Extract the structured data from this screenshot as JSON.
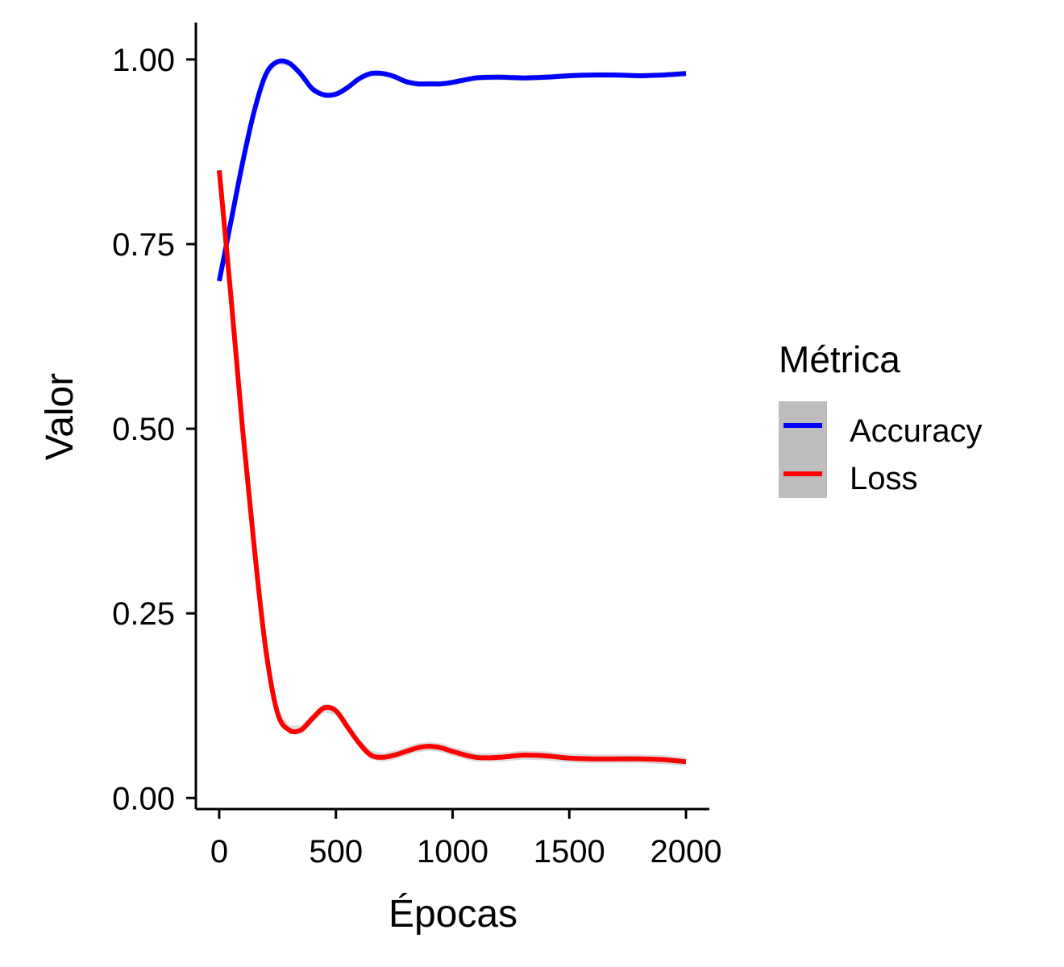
{
  "chart_data": {
    "type": "line",
    "title": "",
    "xlabel": "Épocas",
    "ylabel": "Valor",
    "xlim": [
      -100,
      2100
    ],
    "ylim": [
      -0.015,
      1.05
    ],
    "x_ticks": [
      0,
      500,
      1000,
      1500,
      2000
    ],
    "x_tick_labels": [
      "0",
      "500",
      "1000",
      "1500",
      "2000"
    ],
    "y_ticks": [
      0,
      0.25,
      0.5,
      0.75,
      1.0
    ],
    "y_tick_labels": [
      "0.00",
      "0.25",
      "0.50",
      "0.75",
      "1.00"
    ],
    "grid": false,
    "legend": {
      "title": "Métrica",
      "position": "right"
    },
    "series": [
      {
        "name": "Accuracy",
        "color": "#0000ff",
        "band": 0.004,
        "x": [
          0,
          50,
          100,
          150,
          200,
          250,
          300,
          350,
          400,
          450,
          500,
          550,
          600,
          650,
          700,
          750,
          800,
          850,
          900,
          950,
          1000,
          1100,
          1200,
          1300,
          1400,
          1500,
          1600,
          1700,
          1800,
          1900,
          2000
        ],
        "y": [
          0.7,
          0.78,
          0.86,
          0.93,
          0.98,
          0.997,
          0.995,
          0.98,
          0.96,
          0.952,
          0.953,
          0.962,
          0.974,
          0.981,
          0.981,
          0.977,
          0.97,
          0.967,
          0.967,
          0.967,
          0.969,
          0.975,
          0.976,
          0.975,
          0.976,
          0.978,
          0.979,
          0.979,
          0.978,
          0.979,
          0.981
        ]
      },
      {
        "name": "Loss",
        "color": "#ff0000",
        "band": 0.006,
        "x": [
          0,
          50,
          100,
          150,
          200,
          250,
          300,
          350,
          400,
          450,
          500,
          550,
          600,
          650,
          700,
          750,
          800,
          850,
          900,
          950,
          1000,
          1100,
          1200,
          1300,
          1400,
          1500,
          1600,
          1700,
          1800,
          1900,
          2000
        ],
        "y": [
          0.85,
          0.68,
          0.5,
          0.34,
          0.2,
          0.115,
          0.092,
          0.092,
          0.108,
          0.122,
          0.118,
          0.096,
          0.074,
          0.058,
          0.055,
          0.058,
          0.063,
          0.068,
          0.07,
          0.068,
          0.063,
          0.055,
          0.055,
          0.058,
          0.057,
          0.054,
          0.053,
          0.053,
          0.053,
          0.052,
          0.049
        ]
      }
    ]
  }
}
